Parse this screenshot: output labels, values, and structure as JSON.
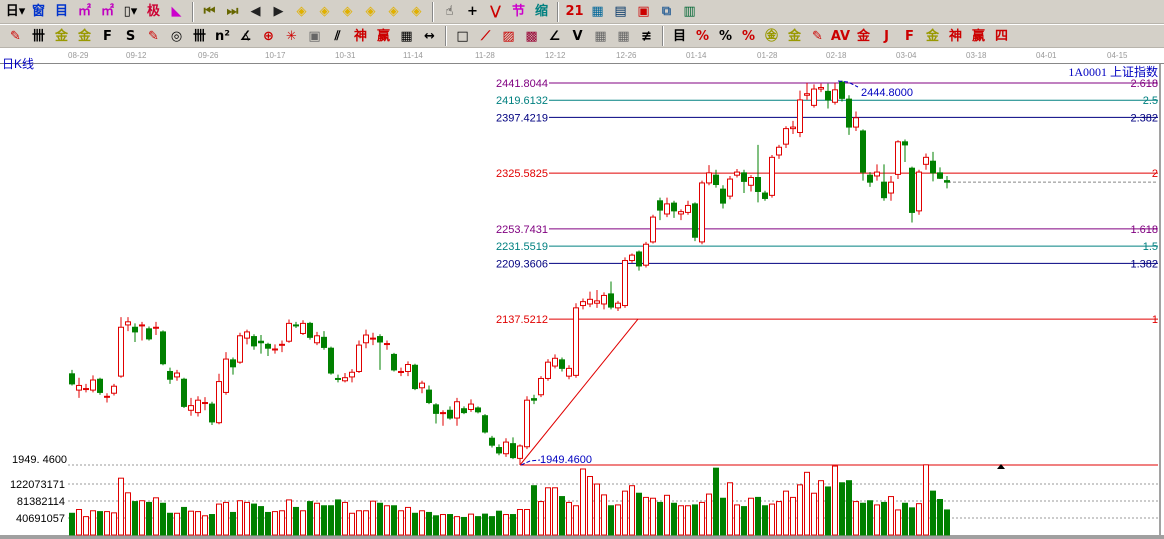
{
  "toolbar1": [
    {
      "name": "period-select-icon",
      "glyph": "日▾",
      "color": "#000"
    },
    {
      "name": "window-icon",
      "glyph": "窗",
      "color": "#0033cc"
    },
    {
      "name": "list-icon",
      "glyph": "目",
      "color": "#0033cc"
    },
    {
      "name": "multi-chart-3-icon",
      "glyph": "㎡",
      "color": "#c000c0"
    },
    {
      "name": "multi-chart-9-icon",
      "glyph": "㎡",
      "color": "#c000c0"
    },
    {
      "name": "candle-type-icon",
      "glyph": "▯▾",
      "color": "#000"
    },
    {
      "name": "extreme-icon",
      "glyph": "极",
      "color": "#cc0033"
    },
    {
      "name": "flag-icon",
      "glyph": "◣",
      "color": "#cc00cc"
    },
    {
      "sep": true
    },
    {
      "name": "first-icon",
      "glyph": "⏮",
      "color": "#666600"
    },
    {
      "name": "last-icon",
      "glyph": "⏭",
      "color": "#666600"
    },
    {
      "name": "prev-icon",
      "glyph": "◀",
      "color": "#222"
    },
    {
      "name": "next-icon",
      "glyph": "▶",
      "color": "#222"
    },
    {
      "name": "move-left-icon",
      "glyph": "◈",
      "color": "#e0b000"
    },
    {
      "name": "move-right-icon",
      "glyph": "◈",
      "color": "#e0b000"
    },
    {
      "name": "expand-icon",
      "glyph": "◈",
      "color": "#e0b000"
    },
    {
      "name": "shrink-icon",
      "glyph": "◈",
      "color": "#e0b000"
    },
    {
      "name": "zoom-in-icon",
      "glyph": "◈",
      "color": "#e0b000"
    },
    {
      "name": "zoom-out-icon",
      "glyph": "◈",
      "color": "#e0b000"
    },
    {
      "sep": true
    },
    {
      "name": "hand-icon",
      "glyph": "☝",
      "color": "#000"
    },
    {
      "name": "crosshair-icon",
      "glyph": "+",
      "color": "#000"
    },
    {
      "name": "line-tool-icon",
      "glyph": "⋁",
      "color": "#cc0000"
    },
    {
      "name": "section-icon",
      "glyph": "节",
      "color": "#cc00cc"
    },
    {
      "name": "shrink-chart-icon",
      "glyph": "缩",
      "color": "#008080"
    },
    {
      "sep": true
    },
    {
      "name": "calendar-icon",
      "glyph": "21",
      "color": "#cc0000"
    },
    {
      "name": "calculator-icon",
      "glyph": "▦",
      "color": "#006699"
    },
    {
      "name": "document-icon",
      "glyph": "▤",
      "color": "#003366"
    },
    {
      "name": "save-icon",
      "glyph": "▣",
      "color": "#cc0000"
    },
    {
      "name": "network-icon",
      "glyph": "⧉",
      "color": "#336699"
    },
    {
      "name": "tools-icon",
      "glyph": "▥",
      "color": "#006633"
    }
  ],
  "toolbar2": [
    {
      "name": "pen-icon",
      "glyph": "✎",
      "color": "#cc0000"
    },
    {
      "name": "parallel-lines-icon",
      "glyph": "卌",
      "color": "#000"
    },
    {
      "name": "gold-line-icon",
      "glyph": "金",
      "color": "#999900"
    },
    {
      "name": "gold-line-2-icon",
      "glyph": "金",
      "color": "#999900"
    },
    {
      "name": "fibonacci-icon",
      "glyph": "F",
      "color": "#000"
    },
    {
      "name": "spiral-icon",
      "glyph": "S",
      "color": "#000"
    },
    {
      "name": "pen-ruler-icon",
      "glyph": "✎",
      "color": "#cc0000"
    },
    {
      "name": "circle-icon",
      "glyph": "◎",
      "color": "#000"
    },
    {
      "name": "cycle-lines-icon",
      "glyph": "卌",
      "color": "#000"
    },
    {
      "name": "n-square-icon",
      "glyph": "n²",
      "color": "#000"
    },
    {
      "name": "angle-icon",
      "glyph": "∡",
      "color": "#000"
    },
    {
      "name": "target-icon",
      "glyph": "⊕",
      "color": "#cc0000"
    },
    {
      "name": "star-icon",
      "glyph": "✳",
      "color": "#cc0000"
    },
    {
      "name": "box-icon",
      "glyph": "▣",
      "color": "#666"
    },
    {
      "name": "wave-icon",
      "glyph": "⫽",
      "color": "#000"
    },
    {
      "name": "god-icon",
      "glyph": "神",
      "color": "#cc0000"
    },
    {
      "name": "win-icon",
      "glyph": "赢",
      "color": "#cc0000"
    },
    {
      "name": "table-icon",
      "glyph": "▦",
      "color": "#000"
    },
    {
      "name": "measure-icon",
      "glyph": "↔",
      "color": "#000"
    },
    {
      "sep": true
    },
    {
      "name": "rect-icon",
      "glyph": "□",
      "color": "#000"
    },
    {
      "name": "fan-icon",
      "glyph": "⟋",
      "color": "#cc0000"
    },
    {
      "name": "gann-grid-icon",
      "glyph": "▨",
      "color": "#cc0000"
    },
    {
      "name": "gann-box-icon",
      "glyph": "▩",
      "color": "#990033"
    },
    {
      "name": "angle-line-icon",
      "glyph": "∠",
      "color": "#000"
    },
    {
      "name": "v-line-icon",
      "glyph": "V",
      "color": "#000"
    },
    {
      "name": "grid-icon",
      "glyph": "▦",
      "color": "#666"
    },
    {
      "name": "grid-2-icon",
      "glyph": "▦",
      "color": "#666"
    },
    {
      "name": "hatch-icon",
      "glyph": "≢",
      "color": "#000"
    },
    {
      "sep": true
    },
    {
      "name": "ruler-table-icon",
      "glyph": "目",
      "color": "#000"
    },
    {
      "name": "percent-line-icon",
      "glyph": "%",
      "color": "#cc0000"
    },
    {
      "name": "percent-icon",
      "glyph": "%",
      "color": "#000"
    },
    {
      "name": "percent-levels-icon",
      "glyph": "%",
      "color": "#cc0000"
    },
    {
      "name": "gold-circle-icon",
      "glyph": "㊎",
      "color": "#999900"
    },
    {
      "name": "gold-levels-icon",
      "glyph": "金",
      "color": "#999900"
    },
    {
      "name": "marker-icon",
      "glyph": "✎",
      "color": "#cc0000"
    },
    {
      "name": "av-icon",
      "glyph": "AV",
      "color": "#cc0000"
    },
    {
      "name": "gold-line-3-icon",
      "glyph": "金",
      "color": "#cc0000"
    },
    {
      "name": "j-line-icon",
      "glyph": "J",
      "color": "#cc0000"
    },
    {
      "name": "f-line-icon",
      "glyph": "F",
      "color": "#cc0000"
    },
    {
      "name": "gold-angle-icon",
      "glyph": "金",
      "color": "#999900"
    },
    {
      "name": "god-angle-icon",
      "glyph": "神",
      "color": "#cc0000"
    },
    {
      "name": "win-angle-icon",
      "glyph": "赢",
      "color": "#cc0000"
    },
    {
      "name": "four-angle-icon",
      "glyph": "四",
      "color": "#cc0000"
    }
  ],
  "header": {
    "period": "日K线",
    "security": "1A0001 上证指数"
  },
  "colors": {
    "up": "#e00000",
    "down": "#008000",
    "fib_purple": "#800080",
    "fib_teal": "#008080",
    "fib_navy": "#000080",
    "fib_red": "#e00000",
    "annotation": "#0000c0"
  },
  "chart_data": {
    "type": "candlestick",
    "x_tick_labels": [
      "08-29",
      "09-12",
      "09-26",
      "10-17",
      "10-31",
      "11-14",
      "11-28",
      "12-12",
      "12-26",
      "01-14",
      "01-28",
      "02-18",
      "03-04",
      "03-18",
      "04-01",
      "04-15"
    ],
    "price_axis_label": "1949. 4600",
    "volume_tick_labels": [
      "122073171",
      "81382114",
      "40691057"
    ],
    "volume_ticks": [
      122073171,
      81382114,
      40691057
    ],
    "fib_levels": [
      {
        "price": 2441.8044,
        "label": "2441.8044",
        "ratio": "2.618",
        "color": "#800080"
      },
      {
        "price": 2419.6132,
        "label": "2419.6132",
        "ratio": "2.5",
        "color": "#008080"
      },
      {
        "price": 2397.4219,
        "label": "2397.4219",
        "ratio": "2.382",
        "color": "#000080"
      },
      {
        "price": 2325.5825,
        "label": "2325.5825",
        "ratio": "2",
        "color": "#e00000"
      },
      {
        "price": 2253.7431,
        "label": "2253.7431",
        "ratio": "1.618",
        "color": "#800080"
      },
      {
        "price": 2231.5519,
        "label": "2231.5519",
        "ratio": "1.5",
        "color": "#008080"
      },
      {
        "price": 2209.3606,
        "label": "2209.3606",
        "ratio": "1.382",
        "color": "#000080"
      },
      {
        "price": 2137.5212,
        "label": "2137.5212",
        "ratio": "1",
        "color": "#e00000"
      }
    ],
    "fib_base": 1949.46,
    "annotations": {
      "high": "2444.8000",
      "low": "1949.4600",
      "high_value": 2444.8,
      "low_value": 1949.46
    },
    "ohlc": [
      [
        2067,
        2072,
        2052,
        2054
      ],
      [
        2046,
        2062,
        2036,
        2052
      ],
      [
        2047,
        2054,
        2043,
        2048
      ],
      [
        2046,
        2065,
        2043,
        2059
      ],
      [
        2060,
        2062,
        2040,
        2043
      ],
      [
        2037,
        2042,
        2030,
        2038
      ],
      [
        2042,
        2054,
        2039,
        2051
      ],
      [
        2064,
        2140,
        2062,
        2127
      ],
      [
        2130,
        2140,
        2122,
        2134
      ],
      [
        2127,
        2132,
        2108,
        2121
      ],
      [
        2129,
        2134,
        2110,
        2130
      ],
      [
        2125,
        2128,
        2110,
        2112
      ],
      [
        2126,
        2134,
        2117,
        2127
      ],
      [
        2121,
        2123,
        2078,
        2080
      ],
      [
        2070,
        2075,
        2054,
        2060
      ],
      [
        2063,
        2072,
        2058,
        2068
      ],
      [
        2060,
        2062,
        2023,
        2025
      ],
      [
        2020,
        2036,
        2013,
        2026
      ],
      [
        2017,
        2038,
        2012,
        2033
      ],
      [
        2029,
        2037,
        2020,
        2030
      ],
      [
        2028,
        2031,
        2001,
        2005
      ],
      [
        2004,
        2067,
        2002,
        2057
      ],
      [
        2043,
        2095,
        2040,
        2086
      ],
      [
        2085,
        2088,
        2066,
        2076
      ],
      [
        2082,
        2120,
        2080,
        2116
      ],
      [
        2113,
        2124,
        2105,
        2121
      ],
      [
        2115,
        2118,
        2098,
        2103
      ],
      [
        2109,
        2117,
        2093,
        2107
      ],
      [
        2105,
        2107,
        2090,
        2100
      ],
      [
        2098,
        2105,
        2093,
        2099
      ],
      [
        2104,
        2110,
        2095,
        2105
      ],
      [
        2109,
        2137,
        2107,
        2132
      ],
      [
        2130,
        2134,
        2126,
        2129
      ],
      [
        2119,
        2136,
        2117,
        2132
      ],
      [
        2132,
        2134,
        2111,
        2114
      ],
      [
        2107,
        2121,
        2104,
        2116
      ],
      [
        2114,
        2122,
        2098,
        2101
      ],
      [
        2100,
        2102,
        2066,
        2068
      ],
      [
        2061,
        2066,
        2056,
        2060
      ],
      [
        2058,
        2068,
        2056,
        2062
      ],
      [
        2063,
        2073,
        2056,
        2069
      ],
      [
        2070,
        2110,
        2068,
        2104
      ],
      [
        2107,
        2124,
        2100,
        2117
      ],
      [
        2113,
        2120,
        2104,
        2113
      ],
      [
        2115,
        2118,
        2072,
        2108
      ],
      [
        2105,
        2110,
        2098,
        2106
      ],
      [
        2092,
        2094,
        2070,
        2072
      ],
      [
        2069,
        2075,
        2064,
        2070
      ],
      [
        2070,
        2083,
        2064,
        2079
      ],
      [
        2078,
        2080,
        2046,
        2048
      ],
      [
        2049,
        2058,
        2042,
        2055
      ],
      [
        2046,
        2052,
        2028,
        2030
      ],
      [
        2027,
        2029,
        2003,
        2016
      ],
      [
        2016,
        2020,
        2000,
        2017
      ],
      [
        2020,
        2025,
        2008,
        2010
      ],
      [
        2010,
        2036,
        2000,
        2031
      ],
      [
        2022,
        2025,
        2015,
        2017
      ],
      [
        2021,
        2034,
        2018,
        2028
      ],
      [
        2023,
        2025,
        2016,
        2018
      ],
      [
        2013,
        2015,
        1990,
        1992
      ],
      [
        1984,
        1987,
        1972,
        1975
      ],
      [
        1972,
        1976,
        1962,
        1965
      ],
      [
        1964,
        1984,
        1960,
        1979
      ],
      [
        1977,
        1985,
        1957,
        1959
      ],
      [
        1958,
        1976,
        1949.46,
        1974
      ],
      [
        1973,
        2038,
        1970,
        2033
      ],
      [
        2035,
        2040,
        2028,
        2033
      ],
      [
        2040,
        2064,
        2037,
        2061
      ],
      [
        2061,
        2086,
        2058,
        2082
      ],
      [
        2077,
        2092,
        2074,
        2087
      ],
      [
        2085,
        2088,
        2070,
        2074
      ],
      [
        2064,
        2078,
        2060,
        2074
      ],
      [
        2065,
        2158,
        2062,
        2152
      ],
      [
        2155,
        2164,
        2150,
        2160
      ],
      [
        2157,
        2173,
        2153,
        2163
      ],
      [
        2158,
        2175,
        2152,
        2161
      ],
      [
        2157,
        2172,
        2150,
        2168
      ],
      [
        2170,
        2186,
        2150,
        2153
      ],
      [
        2152,
        2161,
        2148,
        2158
      ],
      [
        2155,
        2217,
        2152,
        2213
      ],
      [
        2213,
        2222,
        2210,
        2220
      ],
      [
        2224,
        2226,
        2200,
        2206
      ],
      [
        2207,
        2237,
        2204,
        2234
      ],
      [
        2237,
        2272,
        2235,
        2269
      ],
      [
        2290,
        2294,
        2265,
        2278
      ],
      [
        2273,
        2294,
        2269,
        2286
      ],
      [
        2287,
        2290,
        2268,
        2277
      ],
      [
        2273,
        2279,
        2265,
        2276
      ],
      [
        2275,
        2290,
        2272,
        2284
      ],
      [
        2286,
        2288,
        2238,
        2243
      ],
      [
        2237,
        2316,
        2234,
        2313
      ],
      [
        2313,
        2336,
        2310,
        2326
      ],
      [
        2323,
        2330,
        2307,
        2311
      ],
      [
        2305,
        2310,
        2280,
        2287
      ],
      [
        2296,
        2322,
        2292,
        2318
      ],
      [
        2323,
        2331,
        2320,
        2327
      ],
      [
        2326,
        2330,
        2300,
        2315
      ],
      [
        2310,
        2323,
        2302,
        2320
      ],
      [
        2320,
        2362,
        2288,
        2302
      ],
      [
        2300,
        2303,
        2290,
        2293
      ],
      [
        2297,
        2349,
        2294,
        2346
      ],
      [
        2349,
        2362,
        2344,
        2359
      ],
      [
        2363,
        2386,
        2358,
        2383
      ],
      [
        2383,
        2393,
        2376,
        2385
      ],
      [
        2378,
        2432,
        2372,
        2420
      ],
      [
        2426,
        2442,
        2420,
        2428
      ],
      [
        2413,
        2440,
        2410,
        2434
      ],
      [
        2434,
        2441,
        2430,
        2436
      ],
      [
        2431,
        2441,
        2409,
        2420
      ],
      [
        2417,
        2442,
        2414,
        2433
      ],
      [
        2443,
        2444.8,
        2418,
        2422
      ],
      [
        2421,
        2426,
        2375,
        2385
      ],
      [
        2385,
        2405,
        2380,
        2397
      ],
      [
        2380,
        2382,
        2316,
        2327
      ],
      [
        2323,
        2327,
        2308,
        2314
      ],
      [
        2322,
        2337,
        2316,
        2327
      ],
      [
        2314,
        2337,
        2290,
        2294
      ],
      [
        2300,
        2322,
        2290,
        2314
      ],
      [
        2324,
        2368,
        2318,
        2366
      ],
      [
        2366,
        2369,
        2340,
        2362
      ],
      [
        2332,
        2334,
        2262,
        2275
      ],
      [
        2277,
        2330,
        2272,
        2327
      ],
      [
        2337,
        2351,
        2330,
        2346
      ],
      [
        2341,
        2353,
        2315,
        2326
      ],
      [
        2326,
        2333,
        2318,
        2319
      ],
      [
        2316,
        2322,
        2306,
        2314
      ]
    ],
    "volume": [
      52000000,
      61000000,
      44000000,
      58000000,
      56000000,
      56000000,
      53000000,
      136000000,
      101000000,
      80000000,
      82000000,
      78000000,
      89000000,
      76000000,
      52000000,
      52000000,
      66000000,
      57000000,
      56000000,
      46000000,
      49000000,
      74000000,
      78000000,
      54000000,
      82000000,
      78000000,
      74000000,
      68000000,
      54000000,
      56000000,
      58000000,
      84000000,
      66000000,
      58000000,
      80000000,
      76000000,
      70000000,
      70000000,
      84000000,
      78000000,
      52000000,
      58000000,
      58000000,
      81000000,
      76000000,
      70000000,
      70000000,
      58000000,
      66000000,
      52000000,
      58000000,
      54000000,
      46000000,
      49000000,
      49000000,
      44000000,
      42000000,
      50000000,
      44000000,
      50000000,
      44000000,
      57000000,
      49000000,
      49000000,
      61000000,
      61000000,
      118000000,
      80000000,
      113000000,
      113000000,
      92000000,
      78000000,
      70000000,
      158000000,
      140000000,
      122000000,
      96000000,
      70000000,
      72000000,
      105000000,
      118000000,
      100000000,
      90000000,
      88000000,
      78000000,
      95000000,
      76000000,
      70000000,
      70000000,
      72000000,
      78000000,
      98000000,
      160000000,
      88000000,
      125000000,
      72000000,
      68000000,
      88000000,
      90000000,
      70000000,
      74000000,
      80000000,
      105000000,
      90000000,
      120000000,
      150000000,
      100000000,
      130000000,
      115000000,
      165000000,
      125000000,
      130000000,
      80000000,
      76000000,
      82000000,
      72000000,
      78000000,
      92000000,
      60000000,
      76000000,
      65000000,
      75000000,
      168000000,
      105000000,
      85000000,
      60000000
    ]
  }
}
